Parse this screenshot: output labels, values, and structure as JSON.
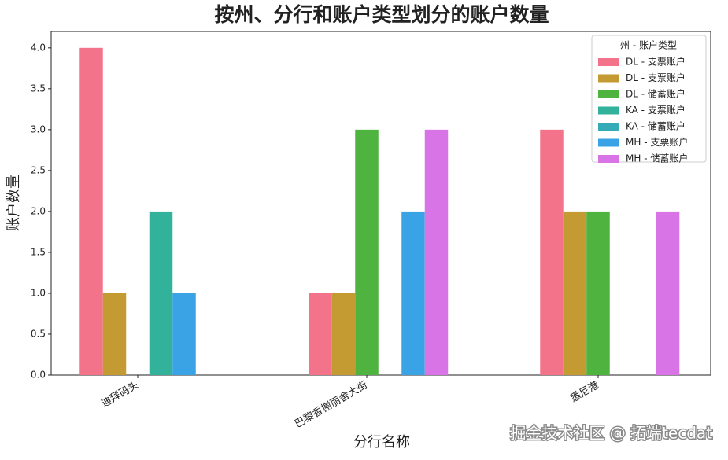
{
  "chart_data": {
    "type": "bar",
    "title": "按州、分行和账户类型划分的账户数量",
    "x_label": "分行名称",
    "y_label": "账户数量",
    "categories": [
      "迪拜码头",
      "巴黎香榭丽舍大街",
      "悉尼港"
    ],
    "legend_title": "州 - 账户类型",
    "legend_position": "upper right",
    "series": [
      {
        "name": "DL - 支票账户",
        "color": "#f3738a",
        "values": [
          4,
          1,
          3
        ]
      },
      {
        "name": "DL - 支票账户",
        "color": "#c39b32",
        "values": [
          1,
          1,
          2
        ]
      },
      {
        "name": "DL - 储蓄账户",
        "color": "#4fb33f",
        "values": [
          null,
          3,
          2
        ]
      },
      {
        "name": "KA - 支票账户",
        "color": "#32b29a",
        "values": [
          2,
          null,
          null
        ]
      },
      {
        "name": "KA - 储蓄账户",
        "color": "#34abb8",
        "values": [
          null,
          null,
          null
        ]
      },
      {
        "name": "MH - 支票账户",
        "color": "#3aa3e6",
        "values": [
          1,
          2,
          null
        ]
      },
      {
        "name": "MH - 储蓄账户",
        "color": "#d874e6",
        "values": [
          null,
          3,
          2
        ]
      }
    ],
    "ylim": [
      0,
      4.2
    ],
    "yticks": [
      {
        "value": 0,
        "label": "0.0"
      },
      {
        "value": 0.5,
        "label": "0.5"
      },
      {
        "value": 1,
        "label": "1.0"
      },
      {
        "value": 1.5,
        "label": "1.5"
      },
      {
        "value": 2,
        "label": "2.0"
      },
      {
        "value": 2.5,
        "label": "2.5"
      },
      {
        "value": 3,
        "label": "3.0"
      },
      {
        "value": 3.5,
        "label": "3.5"
      },
      {
        "value": 4,
        "label": "4.0"
      }
    ],
    "grid": false,
    "watermark": "掘金技术社区 @ 拓端tecdat"
  }
}
